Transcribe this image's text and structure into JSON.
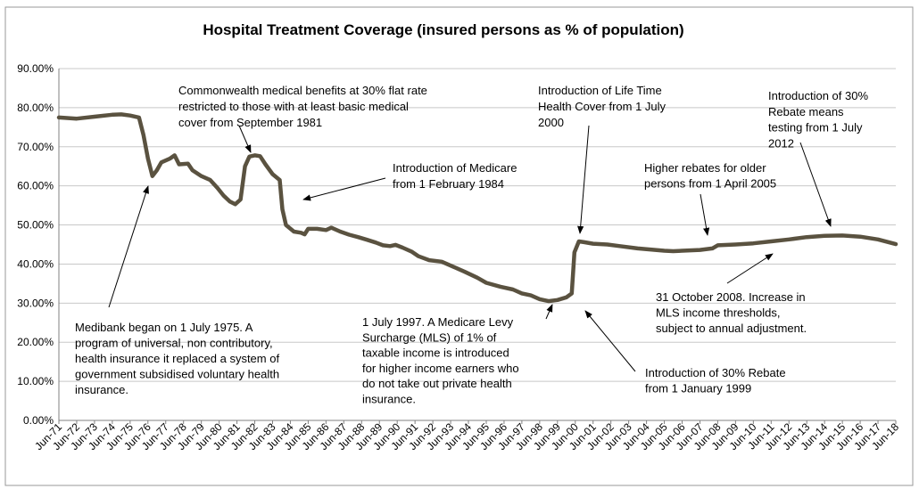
{
  "chart_data": {
    "type": "line",
    "title": "Hospital Treatment Coverage (insured persons as % of population)",
    "xlabel": "",
    "ylabel": "",
    "ylim": [
      0,
      90
    ],
    "y_ticks": [
      0,
      10,
      20,
      30,
      40,
      50,
      60,
      70,
      80,
      90
    ],
    "y_tick_labels": [
      "0.00%",
      "10.00%",
      "20.00%",
      "30.00%",
      "40.00%",
      "50.00%",
      "60.00%",
      "70.00%",
      "80.00%",
      "90.00%"
    ],
    "grid": true,
    "categories": [
      "Jun-71",
      "Jun-72",
      "Jun-73",
      "Jun-74",
      "Jun-75",
      "Jun-76",
      "Jun-77",
      "Jun-78",
      "Jun-79",
      "Jun-80",
      "Jun-81",
      "Jun-82",
      "Jun-83",
      "Jun-84",
      "Jun-85",
      "Jun-86",
      "Jun-87",
      "Jun-88",
      "Jun-89",
      "Jun-90",
      "Jun-91",
      "Jun-92",
      "Jun-93",
      "Jun-94",
      "Jun-95",
      "Jun-96",
      "Jun-97",
      "Jun-98",
      "Jun-99",
      "Jun-00",
      "Jun-01",
      "Jun-02",
      "Jun-03",
      "Jun-04",
      "Jun-05",
      "Jun-06",
      "Jun-07",
      "Jun-08",
      "Jun-09",
      "Jun-10",
      "Jun-11",
      "Jun-12",
      "Jun-13",
      "Jun-14",
      "Jun-15",
      "Jun-16",
      "Jun-17",
      "Jun-18"
    ],
    "series": [
      {
        "name": "Insured persons as % of population",
        "color": "#5a5240",
        "points": [
          [
            0,
            77.5
          ],
          [
            1,
            77.2
          ],
          [
            2,
            77.7
          ],
          [
            3,
            78.2
          ],
          [
            3.5,
            78.3
          ],
          [
            4,
            78.0
          ],
          [
            4.5,
            77.5
          ],
          [
            4.75,
            73.0
          ],
          [
            5.0,
            67.0
          ],
          [
            5.25,
            62.5
          ],
          [
            5.5,
            64.0
          ],
          [
            5.75,
            66.0
          ],
          [
            6.25,
            67.0
          ],
          [
            6.5,
            67.8
          ],
          [
            6.75,
            65.5
          ],
          [
            7.25,
            65.7
          ],
          [
            7.5,
            64.0
          ],
          [
            8.0,
            62.5
          ],
          [
            8.5,
            61.5
          ],
          [
            8.9,
            59.5
          ],
          [
            9.25,
            57.5
          ],
          [
            9.6,
            56.0
          ],
          [
            9.9,
            55.3
          ],
          [
            10.2,
            56.5
          ],
          [
            10.45,
            65.0
          ],
          [
            10.7,
            67.5
          ],
          [
            11.0,
            67.8
          ],
          [
            11.3,
            67.6
          ],
          [
            11.6,
            65.5
          ],
          [
            12.0,
            63.0
          ],
          [
            12.4,
            61.5
          ],
          [
            12.55,
            54.0
          ],
          [
            12.75,
            50.0
          ],
          [
            13.2,
            48.3
          ],
          [
            13.6,
            48.0
          ],
          [
            13.8,
            47.6
          ],
          [
            14.0,
            49.0
          ],
          [
            14.5,
            49.0
          ],
          [
            15.0,
            48.7
          ],
          [
            15.3,
            49.3
          ],
          [
            15.8,
            48.3
          ],
          [
            16.3,
            47.5
          ],
          [
            16.8,
            46.9
          ],
          [
            17.3,
            46.2
          ],
          [
            17.8,
            45.5
          ],
          [
            18.2,
            44.8
          ],
          [
            18.6,
            44.6
          ],
          [
            18.9,
            44.9
          ],
          [
            19.3,
            44.2
          ],
          [
            19.8,
            43.2
          ],
          [
            20.2,
            42.0
          ],
          [
            20.8,
            41.0
          ],
          [
            21.5,
            40.6
          ],
          [
            22.0,
            39.6
          ],
          [
            22.8,
            38.0
          ],
          [
            23.5,
            36.5
          ],
          [
            24.0,
            35.2
          ],
          [
            24.8,
            34.2
          ],
          [
            25.5,
            33.5
          ],
          [
            26.0,
            32.5
          ],
          [
            26.5,
            32.0
          ],
          [
            27.0,
            31.0
          ],
          [
            27.5,
            30.5
          ],
          [
            28.0,
            30.8
          ],
          [
            28.5,
            31.5
          ],
          [
            28.8,
            32.5
          ],
          [
            28.95,
            43.0
          ],
          [
            29.2,
            45.8
          ],
          [
            29.5,
            45.6
          ],
          [
            30.0,
            45.2
          ],
          [
            30.8,
            45.0
          ],
          [
            31.5,
            44.6
          ],
          [
            32.5,
            44.0
          ],
          [
            33.5,
            43.6
          ],
          [
            34.0,
            43.4
          ],
          [
            34.5,
            43.3
          ],
          [
            35.0,
            43.4
          ],
          [
            36.0,
            43.6
          ],
          [
            36.7,
            44.0
          ],
          [
            37.0,
            44.8
          ],
          [
            38.0,
            45.0
          ],
          [
            39.0,
            45.3
          ],
          [
            40.0,
            45.8
          ],
          [
            41.0,
            46.3
          ],
          [
            42.0,
            46.9
          ],
          [
            43.0,
            47.2
          ],
          [
            44.0,
            47.3
          ],
          [
            45.0,
            47.0
          ],
          [
            46.0,
            46.3
          ],
          [
            47.0,
            45.1
          ]
        ]
      }
    ],
    "annotations": [
      {
        "lines": [
          "Commonwealth medical benefits at 30% flat rate",
          "restricted to those with at least basic medical",
          "cover from September 1981"
        ]
      },
      {
        "lines": [
          "Introduction of Medicare",
          "from 1 February 1984"
        ]
      },
      {
        "lines": [
          "Medibank began on 1 July 1975.  A",
          "program of universal, non contributory,",
          "health insurance it replaced a system of",
          "government subsidised voluntary health",
          "insurance."
        ]
      },
      {
        "lines": [
          "Introduction of Life Time",
          "Health Cover from 1 July",
          "2000"
        ]
      },
      {
        "lines": [
          "1 July 1997. A Medicare Levy",
          "Surcharge (MLS) of 1% of",
          "taxable income is introduced",
          "for higher income earners who",
          "do not take out private health",
          "insurance."
        ]
      },
      {
        "lines": [
          "Introduction of 30% Rebate",
          "from 1 January 1999"
        ]
      },
      {
        "lines": [
          "Higher rebates for older",
          "persons from 1 April 2005"
        ]
      },
      {
        "lines": [
          "Introduction of 30%",
          "Rebate means",
          "testing from 1 July",
          "2012"
        ]
      },
      {
        "lines": [
          "31 October 2008. Increase in",
          "MLS income thresholds,",
          "subject to annual adjustment."
        ]
      }
    ]
  }
}
